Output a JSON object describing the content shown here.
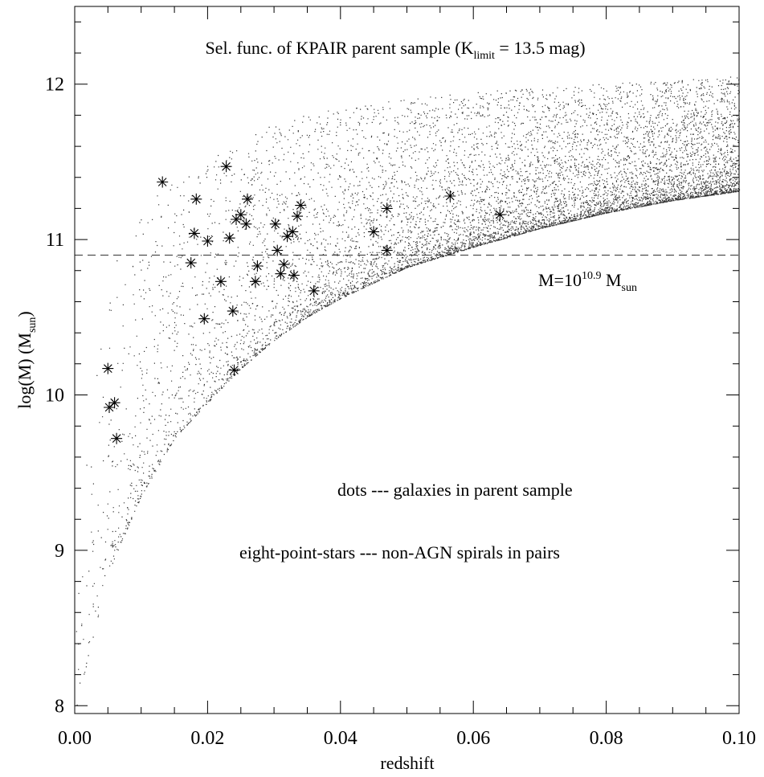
{
  "chart_data": {
    "type": "scatter",
    "title": {
      "prefix": "Sel. func. of KPAIR parent sample (K",
      "subscript": "limit",
      "suffix": " = 13.5 mag)"
    },
    "xlabel": "redshift",
    "ylabel": {
      "prefix": "log(M) (M",
      "subscript": "sun",
      "suffix": ")"
    },
    "xlim": [
      0.0,
      0.1
    ],
    "ylim": [
      7.95,
      12.5
    ],
    "x_ticks": [
      "0.00",
      "0.02",
      "0.04",
      "0.06",
      "0.08",
      "0.10"
    ],
    "x_tick_values": [
      0.0,
      0.02,
      0.04,
      0.06,
      0.08,
      0.1
    ],
    "y_ticks": [
      "8",
      "9",
      "10",
      "11",
      "12"
    ],
    "y_tick_values": [
      8,
      9,
      10,
      11,
      12
    ],
    "x_minor_step": 0.005,
    "y_minor_step": 0.2,
    "grid": false,
    "reference_line": {
      "y": 10.9,
      "style": "dashed",
      "label": {
        "prefix": "M=10",
        "superscript": "10.9",
        "middle": " M",
        "subscript": "sun"
      }
    },
    "annotations": [
      "dots --- galaxies in parent sample",
      "eight-point-stars --- non-AGN spirals in pairs"
    ],
    "series": [
      {
        "name": "galaxies in parent sample",
        "marker": "dot",
        "lower_envelope": [
          [
            0.0,
            7.95
          ],
          [
            0.005,
            8.85
          ],
          [
            0.01,
            9.35
          ],
          [
            0.015,
            9.72
          ],
          [
            0.02,
            9.95
          ],
          [
            0.025,
            10.17
          ],
          [
            0.03,
            10.35
          ],
          [
            0.035,
            10.5
          ],
          [
            0.04,
            10.62
          ],
          [
            0.05,
            10.82
          ],
          [
            0.06,
            10.95
          ],
          [
            0.07,
            11.07
          ],
          [
            0.08,
            11.17
          ],
          [
            0.09,
            11.25
          ],
          [
            0.1,
            11.31
          ]
        ],
        "upper_envelope": [
          [
            0.0,
            9.0
          ],
          [
            0.005,
            10.8
          ],
          [
            0.01,
            11.2
          ],
          [
            0.02,
            11.55
          ],
          [
            0.03,
            11.75
          ],
          [
            0.04,
            11.85
          ],
          [
            0.06,
            11.95
          ],
          [
            0.08,
            12.0
          ],
          [
            0.1,
            12.05
          ]
        ]
      },
      {
        "name": "non-AGN spirals in pairs",
        "marker": "eight-point-star",
        "points": [
          [
            0.005,
            10.17
          ],
          [
            0.0052,
            9.92
          ],
          [
            0.006,
            9.95
          ],
          [
            0.0063,
            9.72
          ],
          [
            0.0132,
            11.37
          ],
          [
            0.0175,
            10.85
          ],
          [
            0.018,
            11.04
          ],
          [
            0.0183,
            11.26
          ],
          [
            0.0195,
            10.49
          ],
          [
            0.02,
            10.99
          ],
          [
            0.022,
            10.73
          ],
          [
            0.0228,
            11.47
          ],
          [
            0.0233,
            11.01
          ],
          [
            0.0238,
            10.54
          ],
          [
            0.024,
            10.16
          ],
          [
            0.0243,
            11.13
          ],
          [
            0.025,
            11.16
          ],
          [
            0.0258,
            11.1
          ],
          [
            0.026,
            11.26
          ],
          [
            0.0272,
            10.73
          ],
          [
            0.0275,
            10.83
          ],
          [
            0.0302,
            11.1
          ],
          [
            0.0305,
            10.93
          ],
          [
            0.031,
            10.78
          ],
          [
            0.0315,
            10.84
          ],
          [
            0.032,
            11.02
          ],
          [
            0.0328,
            11.05
          ],
          [
            0.033,
            10.77
          ],
          [
            0.0335,
            11.15
          ],
          [
            0.034,
            11.22
          ],
          [
            0.036,
            10.67
          ],
          [
            0.045,
            11.05
          ],
          [
            0.047,
            11.2
          ],
          [
            0.047,
            10.93
          ],
          [
            0.0565,
            11.28
          ],
          [
            0.064,
            11.16
          ]
        ]
      }
    ]
  }
}
